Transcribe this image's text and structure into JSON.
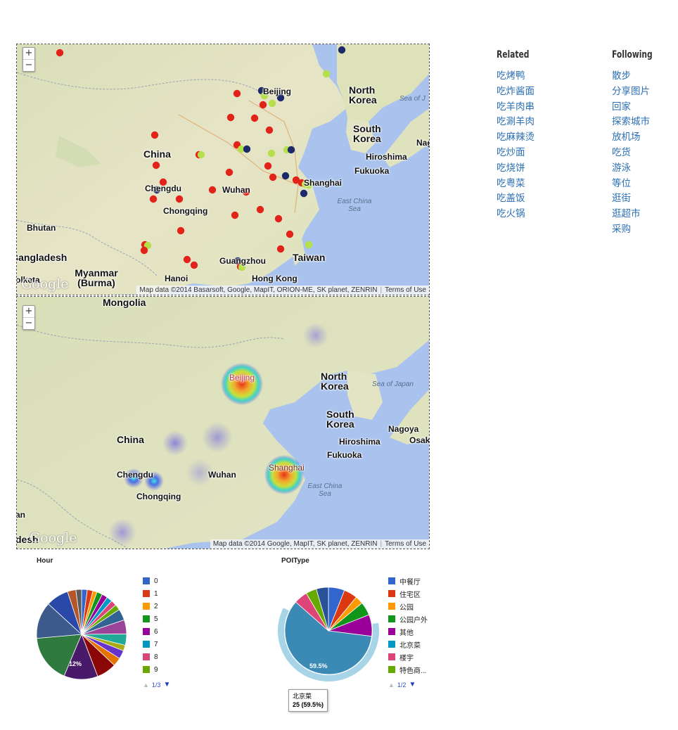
{
  "map_top": {
    "zoom_in": "+",
    "zoom_out": "−",
    "labels": {
      "beijing": "Beijing",
      "north_korea": "North Korea",
      "sea_of_japan": "Sea of J",
      "south_korea": "South Korea",
      "china": "China",
      "chengdu": "Chengdu",
      "chongqing": "Chongqing",
      "wuhan": "Wuhan",
      "shanghai": "Shanghai",
      "hiroshima": "Hiroshima",
      "fukuoka": "Fukuoka",
      "east_china_sea": "East China Sea",
      "nag": "Nag",
      "bhutan": "Bhutan",
      "bangladesh": "Bangladesh",
      "myanmar": "Myanmar (Burma)",
      "kolkata": "olketa",
      "hanoi": "Hanoi",
      "guangzhou": "Guangzhou",
      "hong_kong": "Hong Kong",
      "taiwan": "Taiwan"
    },
    "attribution": "Map data ©2014 Basarsoft, Google, MapIT, ORION-ME, SK planet, ZENRIN",
    "terms": "Terms of Use",
    "google": "Google",
    "dot_colors": {
      "red": "#e2231a",
      "navy": "#1c2a6b",
      "lime": "#b5e04a"
    }
  },
  "map_bottom": {
    "zoom_in": "+",
    "zoom_out": "−",
    "labels": {
      "mongolia": "Mongolia",
      "beijing": "Beijing",
      "north_korea": "North Korea",
      "sea_of_japan": "Sea of Japan",
      "south_korea": "South Korea",
      "nagoya": "Nagoya",
      "osaka": "Osak",
      "china": "China",
      "hiroshima": "Hiroshima",
      "fukuoka": "Fukuoka",
      "chengdu": "Chengdu",
      "chongqing": "Chongqing",
      "wuhan": "Wuhan",
      "shanghai": "Shanghai",
      "east_china_sea": "East China Sea",
      "desh": "desh",
      "an": "an"
    },
    "attribution": "Map data ©2014 Google, MapIT, SK planet, ZENRIN",
    "terms": "Terms of Use",
    "google": "Google"
  },
  "sidebar": {
    "related_title": "Related",
    "related": [
      "吃烤鸭",
      "吃炸酱面",
      "吃羊肉串",
      "吃涮羊肉",
      "吃麻辣烫",
      "吃炒面",
      "吃烧饼",
      "吃粤菜",
      "吃盖饭",
      "吃火锅"
    ],
    "following_title": "Following",
    "following": [
      "散步",
      "分享图片",
      "回家",
      "探索城市",
      "放机场",
      "吃货",
      "游泳",
      "等位",
      "逛街",
      "逛超市",
      "采购"
    ]
  },
  "hour_chart": {
    "title": "Hour",
    "legend": [
      {
        "label": "0",
        "color": "#3366cc"
      },
      {
        "label": "1",
        "color": "#dc3912"
      },
      {
        "label": "2",
        "color": "#ff9900"
      },
      {
        "label": "5",
        "color": "#109618"
      },
      {
        "label": "6",
        "color": "#990099"
      },
      {
        "label": "7",
        "color": "#0099c6"
      },
      {
        "label": "8",
        "color": "#dd4477"
      },
      {
        "label": "9",
        "color": "#66aa00"
      }
    ],
    "pager": "1/3",
    "slice_label": "12%"
  },
  "poi_chart": {
    "title": "POIType",
    "legend": [
      {
        "label": "中餐厅",
        "color": "#3366cc"
      },
      {
        "label": "住宅区",
        "color": "#dc3912"
      },
      {
        "label": "公园",
        "color": "#ff9900"
      },
      {
        "label": "公园户外",
        "color": "#109618"
      },
      {
        "label": "其他",
        "color": "#990099"
      },
      {
        "label": "北京菜",
        "color": "#0099c6"
      },
      {
        "label": "楼宇",
        "color": "#dd4477"
      },
      {
        "label": "特色商...",
        "color": "#66aa00"
      }
    ],
    "pager": "1/2",
    "slice_label": "59.5%",
    "tooltip_name": "北京菜",
    "tooltip_value": "25 (59.5%)"
  }
}
